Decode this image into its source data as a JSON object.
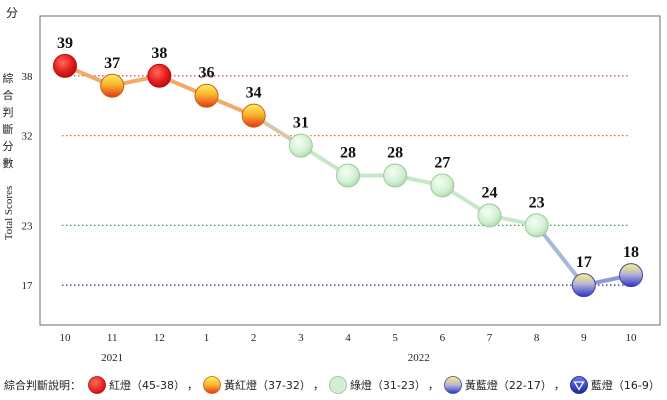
{
  "chart_data": {
    "type": "line",
    "unit_label": "分",
    "ylabel_cn": "綜合判斷分數",
    "ylabel_en": "Total Scores",
    "yticks": [
      17,
      23,
      32,
      38
    ],
    "categories": [
      "10",
      "11",
      "12",
      "1",
      "2",
      "3",
      "4",
      "5",
      "6",
      "7",
      "8",
      "9",
      "10"
    ],
    "years": [
      {
        "label": "2021",
        "months": [
          "10",
          "11",
          "12"
        ]
      },
      {
        "label": "2022",
        "months": [
          "1",
          "2",
          "3",
          "4",
          "5",
          "6",
          "7",
          "8",
          "9",
          "10"
        ]
      }
    ],
    "values": [
      39,
      37,
      38,
      36,
      34,
      31,
      28,
      28,
      27,
      24,
      23,
      17,
      18
    ],
    "signals": [
      "red",
      "yellow-red",
      "red",
      "yellow-red",
      "yellow-red",
      "green",
      "green",
      "green",
      "green",
      "green",
      "green",
      "yellow-blue",
      "yellow-blue"
    ],
    "thresholds": [
      {
        "value": 38,
        "color": "#c0392b"
      },
      {
        "value": 32,
        "color": "#d4781f"
      },
      {
        "value": 23,
        "color": "#2e8b3a"
      },
      {
        "value": 17,
        "color": "#2c2ca0"
      }
    ],
    "ylim": [
      13,
      44
    ]
  },
  "legend": {
    "title": "綜合判斷說明：",
    "separator": "，",
    "items": [
      {
        "key": "red",
        "label": "紅燈（45-38）"
      },
      {
        "key": "yellow-red",
        "label": "黃紅燈（37-32）"
      },
      {
        "key": "green",
        "label": "綠燈（31-23）"
      },
      {
        "key": "yellow-blue",
        "label": "黃藍燈（22-17）"
      },
      {
        "key": "blue",
        "label": "藍燈（16-9）"
      }
    ]
  },
  "colors": {
    "red": "#e8201e",
    "yellow-red": "#f5a623",
    "green": "#cfeccf",
    "yellow-blue": "#5a63d8",
    "blue": "#1e2fb8"
  }
}
